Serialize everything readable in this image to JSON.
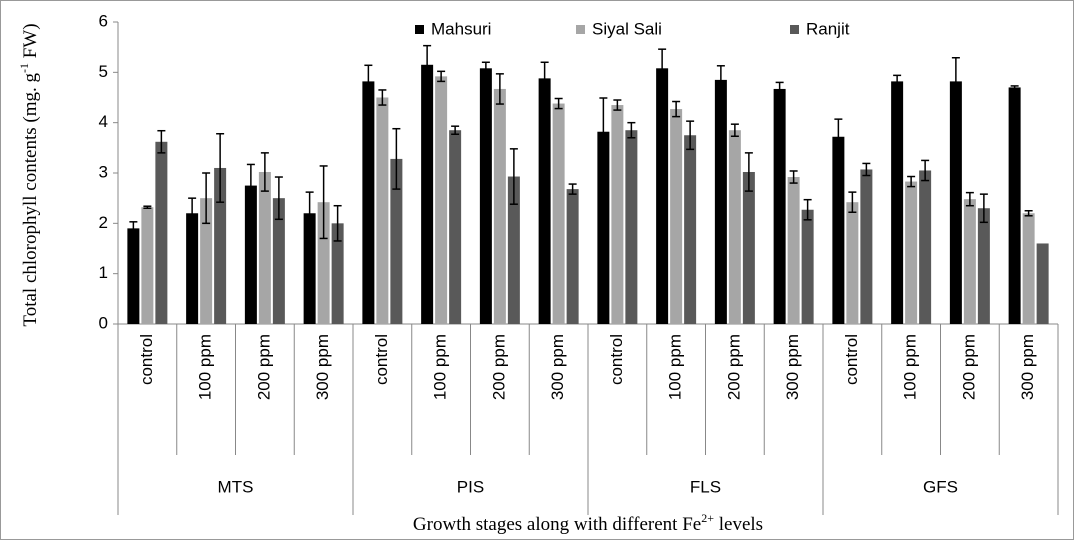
{
  "chart_data": {
    "type": "bar",
    "y_title": {
      "text": "Total chlorophyll contents (mg. g",
      "sup": "-1",
      "tail": " FW)"
    },
    "x_title": {
      "text": "Growth stages along with different Fe",
      "sup": "2+",
      "tail": " levels"
    },
    "categories": [
      "control",
      "100 ppm",
      "200 ppm",
      "300 ppm",
      "control",
      "100 ppm",
      "200 ppm",
      "300 ppm",
      "control",
      "100 ppm",
      "200 ppm",
      "300 ppm",
      "control",
      "100 ppm",
      "200 ppm",
      "300 ppm"
    ],
    "groups": [
      "MTS",
      "PIS",
      "FLS",
      "GFS"
    ],
    "series": [
      {
        "name": "Mahsuri",
        "color": "#000000",
        "values": [
          1.9,
          2.2,
          2.75,
          2.2,
          4.82,
          5.15,
          5.08,
          4.88,
          3.82,
          5.08,
          4.85,
          4.67,
          3.72,
          4.82,
          4.82,
          4.7
        ],
        "errors": [
          0.13,
          0.3,
          0.42,
          0.42,
          0.32,
          0.38,
          0.12,
          0.32,
          0.67,
          0.38,
          0.28,
          0.13,
          0.35,
          0.12,
          0.47,
          0.03
        ]
      },
      {
        "name": "Siyal Sali",
        "color": "#a6a6a6",
        "values": [
          2.32,
          2.5,
          3.02,
          2.42,
          4.5,
          4.92,
          4.67,
          4.38,
          4.35,
          4.27,
          3.85,
          2.92,
          2.42,
          2.83,
          2.48,
          2.2
        ],
        "errors": [
          0.02,
          0.5,
          0.38,
          0.72,
          0.15,
          0.1,
          0.3,
          0.1,
          0.1,
          0.15,
          0.12,
          0.12,
          0.2,
          0.1,
          0.13,
          0.05
        ]
      },
      {
        "name": "Ranjit",
        "color": "#595959",
        "values": [
          3.62,
          3.1,
          2.5,
          2.0,
          3.28,
          3.85,
          2.93,
          2.68,
          3.85,
          3.75,
          3.02,
          2.27,
          3.07,
          3.05,
          2.3,
          1.6
        ],
        "errors": [
          0.22,
          0.68,
          0.42,
          0.35,
          0.6,
          0.08,
          0.55,
          0.1,
          0.15,
          0.28,
          0.38,
          0.2,
          0.12,
          0.2,
          0.28,
          null
        ]
      }
    ],
    "ylim": [
      0,
      6
    ],
    "yticks": [
      0,
      1,
      2,
      3,
      4,
      5,
      6
    ],
    "grid": false
  }
}
